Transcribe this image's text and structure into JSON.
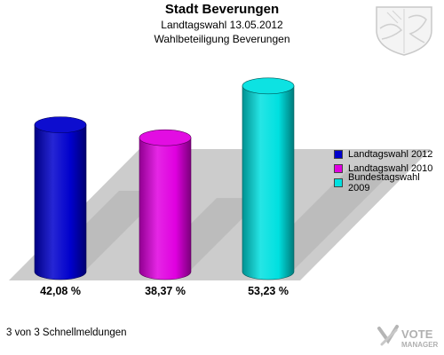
{
  "header": {
    "title": "Stadt Beverungen",
    "subtitle1": "Landtagswahl 13.05.2012",
    "subtitle2": "Wahlbeteiligung Beverungen"
  },
  "footer": {
    "text": "3 von 3 Schnellmeldungen"
  },
  "logo": {
    "line1": "VOTE",
    "line2": "MANAGER"
  },
  "chart_data": {
    "type": "bar",
    "title": "Stadt Beverungen",
    "subtitle": "Landtagswahl 13.05.2012 / Wahlbeteiligung Beverungen",
    "categories": [
      "Landtagswahl 2012",
      "Landtagswahl 2010",
      "Bundestagswahl 2009"
    ],
    "values": [
      42.08,
      38.37,
      53.23
    ],
    "value_labels": [
      "42,08 %",
      "38,37 %",
      "53,23 %"
    ],
    "colors": [
      "#0000cc",
      "#e000e0",
      "#00e0e0"
    ],
    "ylim": [
      0,
      60
    ],
    "legend_position": "right",
    "grid": false
  }
}
